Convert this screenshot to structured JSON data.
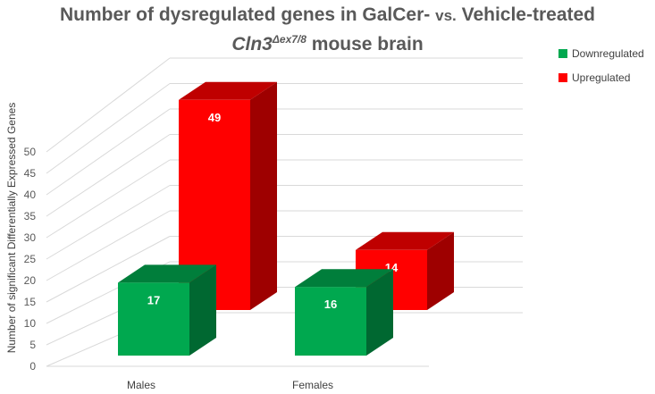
{
  "title": {
    "line1_a": "Number of dysregulated genes in GalCer-",
    "line1_vs": "vs.",
    "line1_b": "Vehicle-treated",
    "line2_gene": "Cln3",
    "line2_sup": "Δex7/8",
    "line2_rest": "mouse brain"
  },
  "chart_data": {
    "type": "bar",
    "categories": [
      "Males",
      "Females"
    ],
    "series": [
      {
        "name": "Downregulated",
        "values": [
          17,
          16
        ],
        "color": "#00a84f"
      },
      {
        "name": "Upregulated",
        "values": [
          49,
          14
        ],
        "color": "#ff0000"
      }
    ],
    "ylabel": "Number  of significant Differentially Expressed Genes",
    "ylim": [
      0,
      50
    ],
    "yticks": [
      0,
      5,
      10,
      15,
      20,
      25,
      30,
      35,
      40,
      45,
      50
    ],
    "legend_position": "top-right",
    "grid": true,
    "style": "3d-column"
  }
}
